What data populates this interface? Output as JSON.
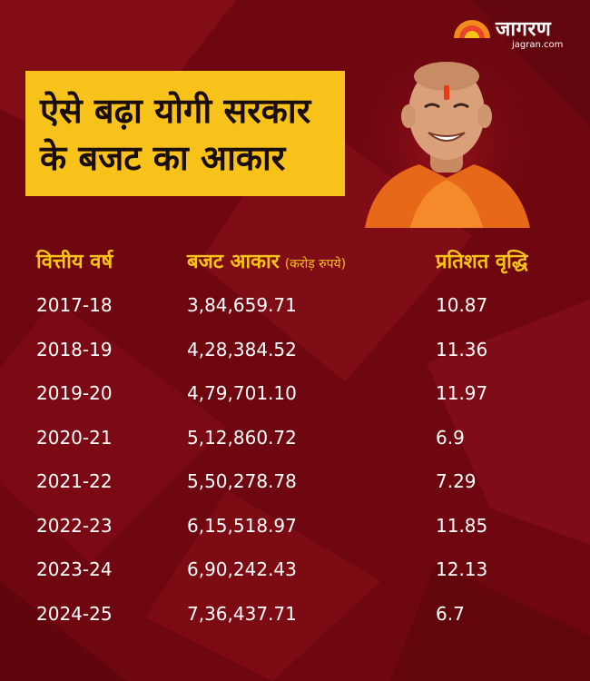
{
  "brand": {
    "name": "जागरण",
    "url": "jagran.com"
  },
  "title": {
    "line1": "ऐसे बढ़ा योगी सरकार",
    "line2": "के बजट का आकार"
  },
  "table": {
    "headers": {
      "year": "वित्तीय वर्ष",
      "budget": "बजट आकार",
      "budget_unit": "(करोड़ रुपये)",
      "growth": "प्रतिशत वृद्धि"
    },
    "rows": [
      {
        "year": "2017-18",
        "budget": "3,84,659.71",
        "growth": "10.87"
      },
      {
        "year": "2018-19",
        "budget": "4,28,384.52",
        "growth": "11.36"
      },
      {
        "year": "2019-20",
        "budget": "4,79,701.10",
        "growth": "11.97"
      },
      {
        "year": "2020-21",
        "budget": "5,12,860.72",
        "growth": "6.9"
      },
      {
        "year": "2021-22",
        "budget": "5,50,278.78",
        "growth": "7.29"
      },
      {
        "year": "2022-23",
        "budget": "6,15,518.97",
        "growth": "11.85"
      },
      {
        "year": "2023-24",
        "budget": "6,90,242.43",
        "growth": "12.13"
      },
      {
        "year": "2024-25",
        "budget": "7,36,437.71",
        "growth": "6.7"
      }
    ]
  },
  "colors": {
    "background": "#7a0a12",
    "accent": "#f7c21a",
    "text": "#ffffff"
  }
}
